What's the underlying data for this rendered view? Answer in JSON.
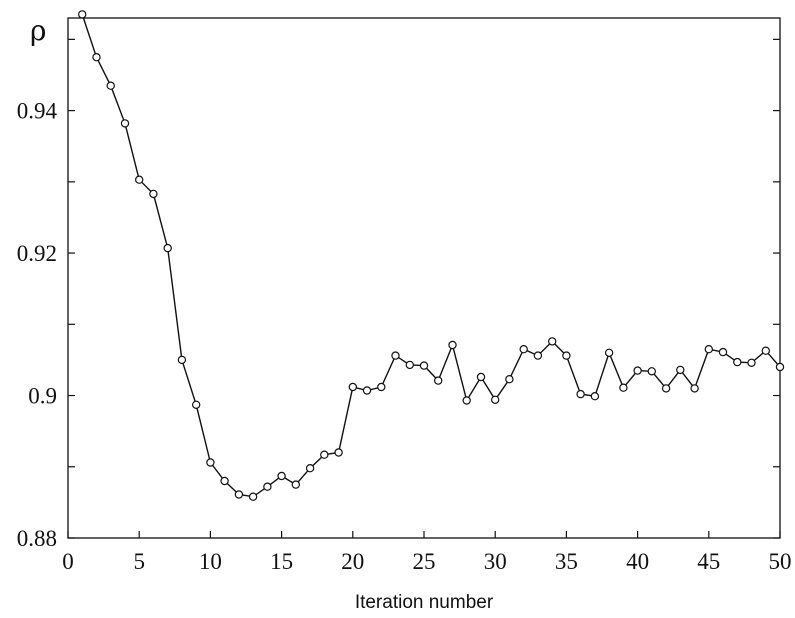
{
  "chart_data": {
    "type": "line",
    "title": "",
    "xlabel": "Iteration number",
    "ylabel": "ρ",
    "xlim": [
      0,
      50
    ],
    "ylim": [
      0.88,
      0.953
    ],
    "grid": false,
    "legend": "none",
    "marker": "hollow circle",
    "line_color": "#111111",
    "xticks": [
      0,
      5,
      10,
      15,
      20,
      25,
      30,
      35,
      40,
      45,
      50
    ],
    "xtick_labels": [
      "0",
      "5",
      "10",
      "15",
      "20",
      "25",
      "30",
      "35",
      "40",
      "45",
      "50"
    ],
    "yticks": [
      0.88,
      0.9,
      0.92,
      0.94
    ],
    "ytick_labels": [
      "0.88",
      "0.9",
      "0.92",
      "0.94"
    ],
    "series": [
      {
        "x": [
          1,
          2,
          3,
          4,
          5,
          6,
          7,
          8,
          9,
          10,
          11,
          12,
          13,
          14,
          15,
          16,
          17,
          18,
          19,
          20,
          21,
          22,
          23,
          24,
          25,
          26,
          27,
          28,
          29,
          30,
          31,
          32,
          33,
          34,
          35,
          36,
          37,
          38,
          39,
          40,
          41,
          42,
          43,
          44,
          45,
          46,
          47,
          48,
          49,
          50
        ],
        "y": [
          0.9535,
          0.9475,
          0.9435,
          0.9382,
          0.9303,
          0.9283,
          0.9207,
          0.905,
          0.8987,
          0.8906,
          0.888,
          0.8861,
          0.8858,
          0.8872,
          0.8887,
          0.8875,
          0.8898,
          0.8917,
          0.892,
          0.9012,
          0.9007,
          0.9012,
          0.9056,
          0.9043,
          0.9042,
          0.9021,
          0.9071,
          0.8993,
          0.9026,
          0.8994,
          0.9023,
          0.9065,
          0.9056,
          0.9076,
          0.9056,
          0.9002,
          0.8999,
          0.906,
          0.9011,
          0.9035,
          0.9034,
          0.901,
          0.9036,
          0.901,
          0.9065,
          0.9061,
          0.9047,
          0.9046,
          0.9063,
          0.904
        ]
      }
    ]
  }
}
